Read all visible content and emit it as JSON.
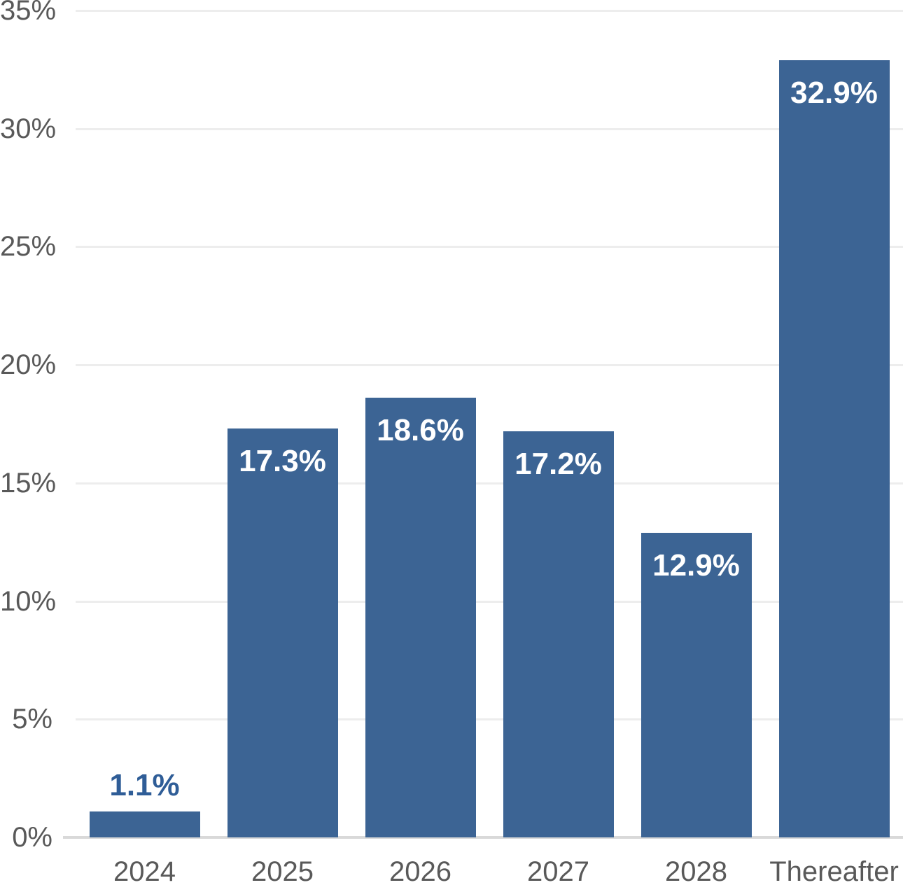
{
  "chart_data": {
    "type": "bar",
    "title": "",
    "xlabel": "",
    "ylabel": "",
    "categories": [
      "2024",
      "2025",
      "2026",
      "2027",
      "2028",
      "Thereafter"
    ],
    "values": [
      1.1,
      17.3,
      18.6,
      17.2,
      12.9,
      32.9
    ],
    "data_labels": [
      "1.1%",
      "17.3%",
      "18.6%",
      "17.2%",
      "12.9%",
      "32.9%"
    ],
    "y_tick_labels": [
      "0%",
      "5%",
      "10%",
      "15%",
      "20%",
      "25%",
      "30%",
      "35%"
    ],
    "y_tick_values": [
      0,
      5,
      10,
      15,
      20,
      25,
      30,
      35
    ],
    "ylim": [
      0,
      35
    ],
    "grid": true,
    "legend": false,
    "colors": {
      "bar_fill": "#3C6494",
      "data_label_inside": "#FFFFFF",
      "data_label_outside": "#2F5D97",
      "axis_text": "#595959",
      "gridline": "#EDEDED",
      "axis_line": "#D9D9D9",
      "background": "#FFFFFF"
    }
  }
}
